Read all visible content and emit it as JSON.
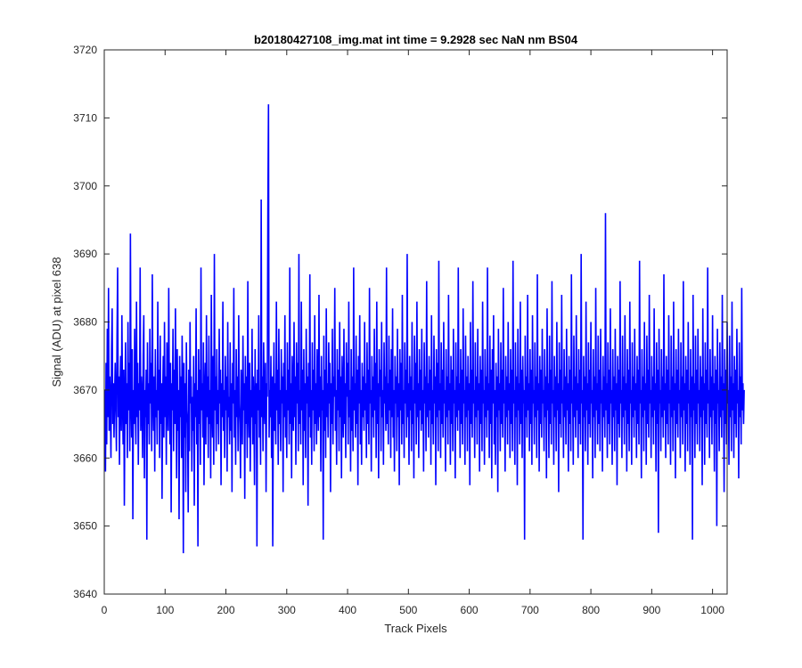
{
  "chart_data": {
    "type": "line",
    "title": "b20180427108_img.mat int time = 9.2928 sec  NaN nm BS04",
    "xlabel": "Track Pixels",
    "ylabel": "Signal (ADU) at pixel 638",
    "xlim": [
      0,
      1024
    ],
    "ylim": [
      3640,
      3720
    ],
    "xticks": [
      0,
      100,
      200,
      300,
      400,
      500,
      600,
      700,
      800,
      900,
      1000
    ],
    "yticks": [
      3640,
      3650,
      3660,
      3670,
      3680,
      3690,
      3700,
      3710,
      3720
    ],
    "grid": false,
    "legend": "none",
    "line_color": "#0000ff",
    "series": [
      {
        "x_start": 1,
        "x_step": 1,
        "note_mean": 3669.5,
        "values": [
          3670,
          3658,
          3674,
          3662,
          3679,
          3666,
          3685,
          3664,
          3672,
          3668,
          3660,
          3676,
          3682,
          3665,
          3671,
          3663,
          3669,
          3674,
          3667,
          3661,
          3678,
          3688,
          3666,
          3672,
          3659,
          3670,
          3675,
          3664,
          3681,
          3669,
          3662,
          3673,
          3653,
          3668,
          3677,
          3665,
          3671,
          3660,
          3680,
          3667,
          3674,
          3661,
          3693,
          3669,
          3663,
          3676,
          3651,
          3670,
          3665,
          3679,
          3668,
          3662,
          3683,
          3666,
          3674,
          3659,
          3671,
          3667,
          3688,
          3664,
          3672,
          3669,
          3660,
          3675,
          3681,
          3657,
          3670,
          3666,
          3673,
          3648,
          3677,
          3665,
          3671,
          3662,
          3679,
          3668,
          3674,
          3661,
          3687,
          3669,
          3664,
          3672,
          3658,
          3676,
          3666,
          3670,
          3662,
          3683,
          3667,
          3673,
          3660,
          3678,
          3665,
          3671,
          3654,
          3669,
          3675,
          3663,
          3680,
          3666,
          3672,
          3659,
          3677,
          3668,
          3664,
          3685,
          3670,
          3662,
          3674,
          3652,
          3671,
          3667,
          3679,
          3661,
          3673,
          3665,
          3682,
          3669,
          3657,
          3676,
          3664,
          3670,
          3651,
          3675,
          3666,
          3672,
          3660,
          3678,
          3669,
          3646,
          3674,
          3663,
          3671,
          3655,
          3677,
          3667,
          3665,
          3652,
          3673,
          3661,
          3680,
          3668,
          3672,
          3658,
          3669,
          3664,
          3675,
          3653,
          3671,
          3666,
          3682,
          3662,
          3670,
          3647,
          3676,
          3665,
          3673,
          3659,
          3688,
          3667,
          3671,
          3663,
          3677,
          3656,
          3669,
          3674,
          3662,
          3681,
          3666,
          3672,
          3660,
          3678,
          3665,
          3670,
          3657,
          3684,
          3668,
          3663,
          3675,
          3659,
          3690,
          3667,
          3672,
          3661,
          3676,
          3665,
          3670,
          3662,
          3679,
          3668,
          3673,
          3656,
          3671,
          3666,
          3683,
          3664,
          3670,
          3660,
          3675,
          3667,
          3672,
          3658,
          3680,
          3666,
          3669,
          3662,
          3677,
          3664,
          3671,
          3655,
          3674,
          3668,
          3685,
          3663,
          3670,
          3659,
          3676,
          3666,
          3672,
          3661,
          3681,
          3668,
          3665,
          3657,
          3673,
          3669,
          3662,
          3678,
          3667,
          3671,
          3654,
          3675,
          3665,
          3672,
          3660,
          3686,
          3668,
          3663,
          3674,
          3658,
          3670,
          3666,
          3679,
          3662,
          3672,
          3668,
          3656,
          3676,
          3665,
          3671,
          3647,
          3673,
          3667,
          3681,
          3663,
          3670,
          3659,
          3698,
          3666,
          3672,
          3661,
          3677,
          3668,
          3665,
          3674,
          3655,
          3671,
          3669,
          3697,
          3712,
          3663,
          3670,
          3666,
          3675,
          3660,
          3672,
          3647,
          3668,
          3677,
          3664,
          3671,
          3662,
          3683,
          3667,
          3673,
          3659,
          3679,
          3665,
          3670,
          3661,
          3676,
          3668,
          3672,
          3655,
          3674,
          3666,
          3681,
          3663,
          3670,
          3660,
          3677,
          3667,
          3673,
          3662,
          3688,
          3665,
          3671,
          3657,
          3675,
          3669,
          3664,
          3680,
          3666,
          3672,
          3659,
          3677,
          3668,
          3674,
          3661,
          3690,
          3665,
          3670,
          3662,
          3683,
          3667,
          3673,
          3656,
          3676,
          3664,
          3671,
          3660,
          3679,
          3668,
          3672,
          3653,
          3674,
          3666,
          3687,
          3663,
          3670,
          3659,
          3677,
          3667,
          3673,
          3661,
          3681,
          3665,
          3671,
          3662,
          3676,
          3669,
          3664,
          3684,
          3666,
          3672,
          3658,
          3675,
          3667,
          3670,
          3648,
          3678,
          3664,
          3673,
          3660,
          3682,
          3666,
          3671,
          3663,
          3677,
          3668,
          3674,
          3655,
          3671,
          3665,
          3679,
          3662,
          3672,
          3669,
          3685,
          3664,
          3670,
          3659,
          3676,
          3667,
          3673,
          3661,
          3680,
          3666,
          3672,
          3657,
          3675,
          3668,
          3663,
          3679,
          3665,
          3671,
          3660,
          3677,
          3669,
          3674,
          3662,
          3683,
          3666,
          3670,
          3658,
          3676,
          3664,
          3672,
          3661,
          3688,
          3667,
          3671,
          3663,
          3678,
          3665,
          3673,
          3656,
          3675,
          3668,
          3681,
          3662,
          3670,
          3659,
          3674,
          3666,
          3672,
          3664,
          3680,
          3667,
          3671,
          3660,
          3677,
          3665,
          3673,
          3662,
          3685,
          3668,
          3670,
          3658,
          3675,
          3666,
          3672,
          3663,
          3679,
          3667,
          3674,
          3660,
          3683,
          3665,
          3671,
          3657,
          3676,
          3669,
          3673,
          3661,
          3680,
          3666,
          3670,
          3659,
          3677,
          3668,
          3672,
          3664,
          3688,
          3665,
          3671,
          3662,
          3678,
          3667,
          3673,
          3660,
          3676,
          3666,
          3682,
          3663,
          3670,
          3658,
          3675,
          3668,
          3672,
          3661,
          3679,
          3666,
          3671,
          3656,
          3676,
          3667,
          3674,
          3662,
          3684,
          3665,
          3670,
          3660,
          3677,
          3668,
          3673,
          3663,
          3690,
          3666,
          3671,
          3659,
          3675,
          3667,
          3672,
          3661,
          3680,
          3665,
          3670,
          3657,
          3678,
          3668,
          3674,
          3662,
          3683,
          3666,
          3671,
          3660,
          3676,
          3667,
          3673,
          3664,
          3679,
          3665,
          3670,
          3658,
          3677,
          3668,
          3672,
          3661,
          3686,
          3666,
          3671,
          3663,
          3675,
          3667,
          3673,
          3659,
          3681,
          3665,
          3670,
          3662,
          3678,
          3668,
          3672,
          3656,
          3676,
          3666,
          3674,
          3661,
          3689,
          3667,
          3671,
          3660,
          3677,
          3665,
          3673,
          3663,
          3680,
          3668,
          3670,
          3658,
          3676,
          3666,
          3672,
          3662,
          3684,
          3667,
          3671,
          3659,
          3675,
          3665,
          3673,
          3661,
          3679,
          3668,
          3670,
          3657,
          3677,
          3666,
          3672,
          3664,
          3688,
          3667,
          3671,
          3660,
          3676,
          3665,
          3673,
          3662,
          3682,
          3668,
          3670,
          3659,
          3678,
          3666,
          3672,
          3661,
          3675,
          3667,
          3671,
          3656,
          3680,
          3665,
          3673,
          3663,
          3686,
          3668,
          3670,
          3660,
          3677,
          3666,
          3672,
          3662,
          3679,
          3667,
          3671,
          3658,
          3675,
          3665,
          3673,
          3661,
          3683,
          3668,
          3670,
          3659,
          3676,
          3666,
          3672,
          3663,
          3688,
          3667,
          3671,
          3660,
          3678,
          3665,
          3673,
          3657,
          3676,
          3668,
          3681,
          3662,
          3670,
          3659,
          3674,
          3666,
          3672,
          3655,
          3679,
          3667,
          3671,
          3661,
          3677,
          3665,
          3673,
          3663,
          3685,
          3668,
          3670,
          3658,
          3675,
          3666,
          3672,
          3662,
          3680,
          3667,
          3671,
          3660,
          3676,
          3665,
          3673,
          3661,
          3689,
          3668,
          3670,
          3659,
          3677,
          3666,
          3672,
          3656,
          3679,
          3667,
          3671,
          3662,
          3683,
          3665,
          3673,
          3660,
          3675,
          3668,
          3670,
          3648,
          3678,
          3666,
          3672,
          3663,
          3684,
          3667,
          3671,
          3661,
          3676,
          3665,
          3673,
          3659,
          3681,
          3668,
          3670,
          3662,
          3677,
          3666,
          3672,
          3660,
          3687,
          3667,
          3671,
          3658,
          3675,
          3665,
          3673,
          3663,
          3679,
          3668,
          3670,
          3661,
          3676,
          3666,
          3672,
          3657,
          3682,
          3667,
          3671,
          3660,
          3678,
          3665,
          3673,
          3662,
          3686,
          3668,
          3670,
          3659,
          3675,
          3666,
          3672,
          3661,
          3680,
          3667,
          3671,
          3655,
          3677,
          3665,
          3673,
          3663,
          3684,
          3668,
          3670,
          3660,
          3676,
          3666,
          3672,
          3662,
          3679,
          3667,
          3671,
          3658,
          3675,
          3665,
          3673,
          3661,
          3687,
          3668,
          3670,
          3659,
          3678,
          3666,
          3672,
          3663,
          3681,
          3667,
          3671,
          3660,
          3676,
          3665,
          3673,
          3662,
          3690,
          3668,
          3670,
          3648,
          3675,
          3666,
          3672,
          3661,
          3683,
          3667,
          3671,
          3659,
          3677,
          3665,
          3673,
          3663,
          3680,
          3668,
          3670,
          3657,
          3676,
          3666,
          3672,
          3660,
          3685,
          3667,
          3671,
          3662,
          3678,
          3665,
          3673,
          3661,
          3679,
          3668,
          3670,
          3658,
          3675,
          3666,
          3672,
          3663,
          3696,
          3667,
          3671,
          3660,
          3677,
          3665,
          3673,
          3662,
          3682,
          3668,
          3670,
          3659,
          3676,
          3666,
          3672,
          3661,
          3679,
          3667,
          3671,
          3656,
          3675,
          3665,
          3673,
          3663,
          3686,
          3668,
          3670,
          3660,
          3678,
          3666,
          3672,
          3662,
          3681,
          3667,
          3671,
          3658,
          3676,
          3665,
          3673,
          3661,
          3683,
          3668,
          3670,
          3659,
          3677,
          3666,
          3672,
          3663,
          3679,
          3667,
          3671,
          3660,
          3675,
          3665,
          3673,
          3662,
          3689,
          3668,
          3670,
          3657,
          3676,
          3666,
          3672,
          3661,
          3680,
          3667,
          3671,
          3659,
          3678,
          3665,
          3673,
          3663,
          3684,
          3668,
          3670,
          3660,
          3675,
          3666,
          3672,
          3662,
          3682,
          3667,
          3671,
          3658,
          3677,
          3665,
          3673,
          3649,
          3679,
          3668,
          3670,
          3661,
          3676,
          3666,
          3672,
          3663,
          3687,
          3667,
          3671,
          3660,
          3675,
          3665,
          3673,
          3662,
          3681,
          3668,
          3670,
          3659,
          3678,
          3666,
          3672,
          3661,
          3683,
          3667,
          3671,
          3657,
          3676,
          3665,
          3673,
          3663,
          3679,
          3668,
          3670,
          3660,
          3677,
          3666,
          3672,
          3662,
          3686,
          3667,
          3671,
          3658,
          3675,
          3665,
          3673,
          3661,
          3680,
          3668,
          3670,
          3659,
          3676,
          3666,
          3672,
          3648,
          3684,
          3667,
          3671,
          3660,
          3678,
          3665,
          3673,
          3662,
          3679,
          3668,
          3670,
          3661,
          3675,
          3666,
          3672,
          3656,
          3682,
          3667,
          3671,
          3659,
          3677,
          3665,
          3673,
          3663,
          3688,
          3668,
          3670,
          3660,
          3676,
          3666,
          3672,
          3662,
          3681,
          3667,
          3671,
          3658,
          3675,
          3665,
          3673,
          3650,
          3679,
          3668,
          3670,
          3661,
          3677,
          3666,
          3672,
          3663,
          3684,
          3667,
          3671,
          3655,
          3676,
          3665,
          3673,
          3662,
          3680,
          3668,
          3670,
          3659,
          3678,
          3666,
          3672,
          3661,
          3683,
          3667,
          3671,
          3660,
          3675,
          3665,
          3673,
          3663,
          3679,
          3668,
          3670,
          3657,
          3677,
          3666,
          3672,
          3662,
          3685,
          3667,
          3671,
          3665,
          3670
        ]
      }
    ]
  }
}
